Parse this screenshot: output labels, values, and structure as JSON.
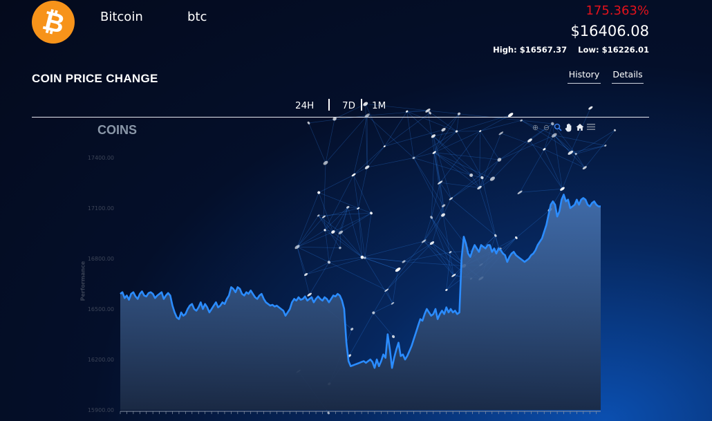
{
  "coin": {
    "logo_symbol": "₿",
    "logo_color": "#f7931a",
    "name": "Bitcoin",
    "symbol": "btc",
    "percent_change": "175.363%",
    "percent_change_color": "#e3121b",
    "price": "$16406.08",
    "high_label": "High:",
    "high_value": "$16567.37",
    "low_label": "Low:",
    "low_value": "$16226.01"
  },
  "section": {
    "title": "COIN PRICE CHANGE",
    "tabs": [
      {
        "label": "History"
      },
      {
        "label": "Details"
      }
    ],
    "ranges": [
      {
        "label": "24H"
      },
      {
        "label": "7D"
      },
      {
        "label": "1M"
      }
    ]
  },
  "toolbar": {
    "icons": [
      "zoom-in-icon",
      "zoom-out-icon",
      "zoom-selection-icon",
      "pan-hand-icon",
      "home-reset-icon",
      "menu-icon"
    ],
    "active_icon": "zoom-selection-icon"
  },
  "chart_data": {
    "type": "area",
    "title": "COINS",
    "ylabel": "Performance",
    "xlabel": "",
    "ylim": [
      15900,
      17400
    ],
    "yticks": [
      "17400.00",
      "17100.00",
      "16800.00",
      "16500.00",
      "16200.00",
      "15900.00"
    ],
    "line_color": "#2b8cff",
    "fill_color_top": "#4a78b8",
    "fill_color_bottom": "#1b2a44",
    "series": [
      {
        "values": [
          16590,
          16600,
          16565,
          16580,
          16555,
          16590,
          16600,
          16575,
          16560,
          16590,
          16605,
          16580,
          16575,
          16595,
          16600,
          16590,
          16565,
          16580,
          16590,
          16600,
          16560,
          16580,
          16595,
          16580,
          16520,
          16480,
          16450,
          16440,
          16480,
          16460,
          16470,
          16500,
          16520,
          16530,
          16500,
          16490,
          16510,
          16540,
          16500,
          16530,
          16510,
          16480,
          16500,
          16520,
          16540,
          16510,
          16520,
          16540,
          16530,
          16560,
          16580,
          16630,
          16620,
          16600,
          16630,
          16620,
          16590,
          16580,
          16600,
          16590,
          16610,
          16590,
          16570,
          16560,
          16580,
          16590,
          16560,
          16540,
          16530,
          16520,
          16525,
          16515,
          16520,
          16510,
          16500,
          16490,
          16460,
          16480,
          16500,
          16540,
          16560,
          16550,
          16570,
          16555,
          16560,
          16575,
          16550,
          16560,
          16570,
          16540,
          16560,
          16575,
          16560,
          16550,
          16570,
          16560,
          16540,
          16560,
          16580,
          16575,
          16590,
          16580,
          16550,
          16500,
          16300,
          16190,
          16160,
          16165,
          16170,
          16175,
          16180,
          16185,
          16190,
          16180,
          16190,
          16200,
          16185,
          16150,
          16200,
          16160,
          16190,
          16230,
          16210,
          16350,
          16260,
          16150,
          16210,
          16260,
          16300,
          16220,
          16230,
          16200,
          16220,
          16250,
          16280,
          16320,
          16360,
          16400,
          16440,
          16430,
          16470,
          16500,
          16480,
          16460,
          16470,
          16500,
          16440,
          16470,
          16490,
          16470,
          16510,
          16480,
          16500,
          16480,
          16490,
          16470,
          16480,
          16800,
          16930,
          16890,
          16830,
          16810,
          16850,
          16880,
          16860,
          16840,
          16880,
          16870,
          16860,
          16880,
          16880,
          16840,
          16860,
          16830,
          16860,
          16850,
          16830,
          16820,
          16780,
          16810,
          16830,
          16840,
          16820,
          16810,
          16800,
          16790,
          16780,
          16790,
          16800,
          16820,
          16830,
          16850,
          16880,
          16900,
          16920,
          16960,
          17000,
          17060,
          17120,
          17140,
          17120,
          17050,
          17080,
          17150,
          17180,
          17140,
          17150,
          17100,
          17110,
          17120,
          17150,
          17120,
          17150,
          17160,
          17150,
          17120,
          17110,
          17130,
          17140,
          17120,
          17110,
          17110
        ]
      }
    ],
    "grid": false,
    "legend": "none"
  }
}
